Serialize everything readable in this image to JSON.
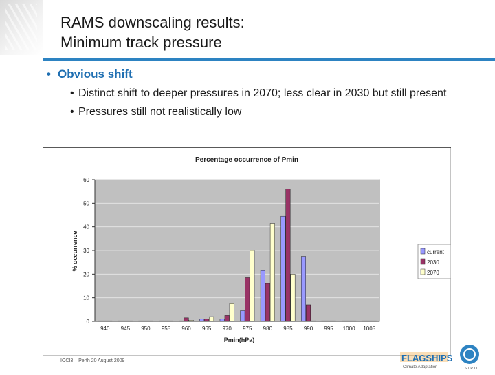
{
  "slide": {
    "title_line1": "RAMS downscaling results:",
    "title_line2": "Minimum track pressure",
    "bullet_main": "Obvious shift",
    "sub_bullets": [
      "Distinct shift to deeper pressures in 2070; less clear in 2030 but still present",
      "Pressures still not realistically low"
    ],
    "footer": "IOCI3 – Perth 20 August 2009",
    "logo_text": "FLAGSHIPS",
    "logo_subtext": "Climate Adaptation",
    "csiro_text": "CSIRO"
  },
  "colors": {
    "accent": "#2d83c2",
    "bullet_color": "#1f6fb2",
    "series_current": "#9999ff",
    "series_2030": "#993366",
    "series_2070": "#ffffcc",
    "plot_bg": "#c0c0c0"
  },
  "chart_data": {
    "type": "bar",
    "title": "Percentage occurrence of Pmin",
    "xlabel": "Pmin(hPa)",
    "ylabel": "% occurrence",
    "categories": [
      "940",
      "945",
      "950",
      "955",
      "960",
      "965",
      "970",
      "975",
      "980",
      "985",
      "990",
      "995",
      "1000",
      "1005"
    ],
    "ylim": [
      0,
      60
    ],
    "yticks": [
      "0",
      "10",
      "20",
      "30",
      "40",
      "50",
      "60"
    ],
    "series": [
      {
        "name": "current",
        "values": [
          0,
          0,
          0,
          0,
          0,
          1,
          1,
          4.5,
          21.5,
          44.5,
          27.5,
          0,
          0,
          0
        ]
      },
      {
        "name": "2030",
        "values": [
          0,
          0,
          0,
          0,
          1.5,
          1,
          2.5,
          18.5,
          16,
          56,
          7,
          0,
          0,
          0
        ]
      },
      {
        "name": "2070",
        "values": [
          0,
          0,
          0,
          0,
          0.5,
          2,
          7.5,
          30,
          41.5,
          20,
          0,
          0,
          0,
          0
        ]
      }
    ],
    "legend_position": "right",
    "grid": true
  }
}
